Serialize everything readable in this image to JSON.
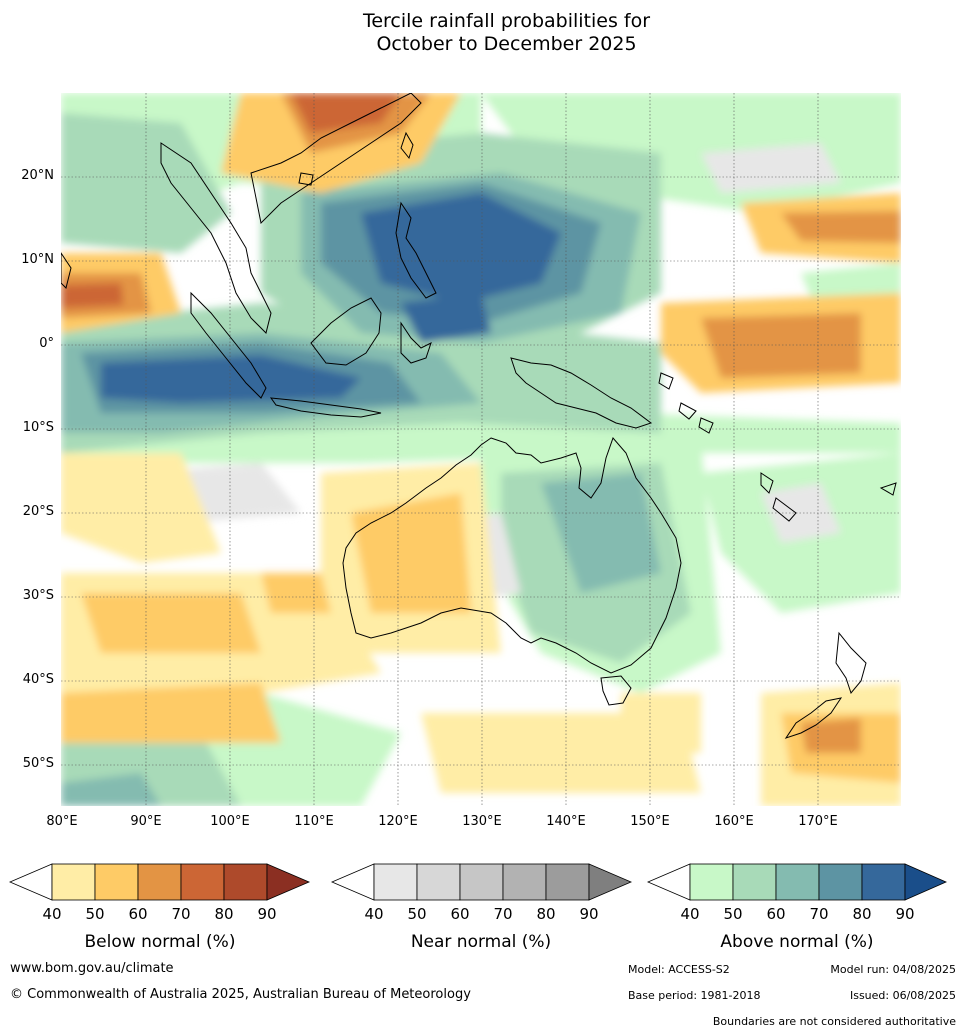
{
  "title_line1": "Tercile rainfall probabilities for",
  "title_line2": "October to December 2025",
  "lat_labels": [
    "20°N",
    "10°N",
    "0°",
    "10°S",
    "20°S",
    "30°S",
    "40°S",
    "50°S"
  ],
  "lon_labels": [
    "80°E",
    "90°E",
    "100°E",
    "110°E",
    "120°E",
    "130°E",
    "140°E",
    "150°E",
    "160°E",
    "170°E"
  ],
  "legends": {
    "below": {
      "title": "Below normal (%)",
      "ticks": [
        "40",
        "50",
        "60",
        "70",
        "80",
        "90"
      ],
      "colors": [
        "#ffeda6",
        "#fecb66",
        "#e39444",
        "#cc6635",
        "#ae4a2b",
        "#8b2f22"
      ]
    },
    "near": {
      "title": "Near normal (%)",
      "ticks": [
        "40",
        "50",
        "60",
        "70",
        "80",
        "90"
      ],
      "colors": [
        "#e7e7e7",
        "#d7d7d7",
        "#c6c6c6",
        "#b2b2b2",
        "#9c9c9c",
        "#7f7f7f"
      ]
    },
    "above": {
      "title": "Above normal (%)",
      "ticks": [
        "40",
        "50",
        "60",
        "70",
        "80",
        "90"
      ],
      "colors": [
        "#c8f8c8",
        "#a8dab8",
        "#84bbb0",
        "#5d94a3",
        "#35689b",
        "#1a4e8a"
      ]
    }
  },
  "footer": {
    "website": "www.bom.gov.au/climate",
    "copyright": "© Commonwealth of Australia 2025, Australian Bureau of Meteorology",
    "model": "Model: ACCESS-S2",
    "model_run": "Model run: 04/08/2025",
    "base_period": "Base period: 1981-2018",
    "issued": "Issued: 06/08/2025",
    "disclaimer": "Boundaries are not considered authoritative"
  }
}
